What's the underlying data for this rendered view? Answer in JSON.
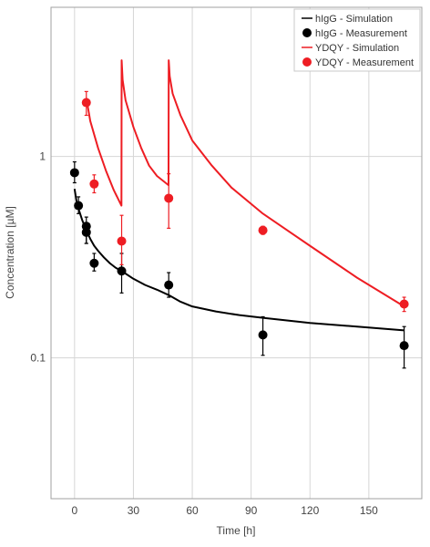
{
  "chart_data": {
    "type": "line",
    "xlabel": "Time [h]",
    "ylabel": "Concentration [µM]",
    "xlim": [
      -12,
      177
    ],
    "ylim": [
      0.02,
      5.5
    ],
    "y_scale": "log",
    "grid": true,
    "legend_position": "top-right",
    "x_ticks": [
      0,
      30,
      60,
      90,
      120,
      150
    ],
    "y_ticks": [
      {
        "value": 1,
        "label": "1"
      },
      {
        "value": 0.1,
        "label": "0.1"
      }
    ],
    "series": [
      {
        "name": "hIgG - Simulation",
        "kind": "line",
        "color": "#000000",
        "x": [
          0,
          1,
          2,
          4,
          6,
          8,
          10,
          12,
          15,
          18,
          21,
          24,
          30,
          36,
          42,
          48,
          54,
          60,
          72,
          84,
          96,
          120,
          144,
          168
        ],
        "y": [
          0.69,
          0.6,
          0.55,
          0.48,
          0.43,
          0.39,
          0.36,
          0.34,
          0.315,
          0.295,
          0.28,
          0.27,
          0.247,
          0.23,
          0.218,
          0.205,
          0.19,
          0.18,
          0.17,
          0.163,
          0.158,
          0.149,
          0.143,
          0.137
        ]
      },
      {
        "name": "hIgG - Measurement",
        "kind": "scatter",
        "color": "#000000",
        "x": [
          0,
          2,
          6,
          6,
          10,
          24,
          48,
          96,
          168
        ],
        "y": [
          0.83,
          0.57,
          0.45,
          0.42,
          0.295,
          0.27,
          0.23,
          0.13,
          0.115
        ],
        "error_low": [
          0.74,
          0.52,
          0.37,
          0.37,
          0.27,
          0.21,
          0.2,
          0.103,
          0.089
        ],
        "error_high": [
          0.94,
          0.63,
          0.5,
          0.47,
          0.33,
          0.33,
          0.265,
          0.16,
          0.143
        ]
      },
      {
        "name": "YDQY - Simulation",
        "kind": "line",
        "color": "#ee1d23",
        "x": [
          6,
          8,
          12,
          16,
          20,
          23.9,
          24,
          24.5,
          26,
          30,
          34,
          38,
          42,
          47.9,
          48,
          48.5,
          50,
          54,
          60,
          70,
          80,
          96,
          120,
          144,
          168
        ],
        "y": [
          1.95,
          1.5,
          1.1,
          0.85,
          0.68,
          0.57,
          3.0,
          2.4,
          1.9,
          1.4,
          1.1,
          0.9,
          0.8,
          0.72,
          3.0,
          2.5,
          2.05,
          1.6,
          1.2,
          0.9,
          0.7,
          0.52,
          0.36,
          0.25,
          0.18
        ]
      },
      {
        "name": "YDQY - Measurement",
        "kind": "scatter",
        "color": "#ee1d23",
        "x": [
          6,
          10,
          24,
          48,
          96,
          168
        ],
        "y": [
          1.85,
          0.73,
          0.38,
          0.62,
          0.43,
          0.185
        ],
        "error_low": [
          1.6,
          0.66,
          0.29,
          0.44,
          0.41,
          0.17
        ],
        "error_high": [
          2.1,
          0.81,
          0.51,
          0.82,
          0.45,
          0.2
        ]
      }
    ]
  }
}
